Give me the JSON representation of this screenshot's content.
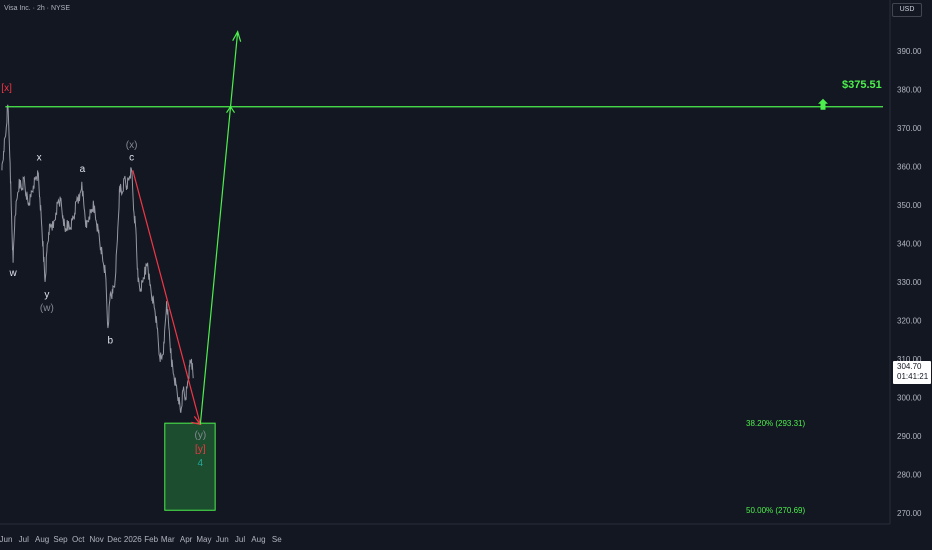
{
  "header": {
    "title": "Visa Inc. · 2h · NYSE"
  },
  "toolbar": {
    "currency_label": "USD"
  },
  "price_badge": {
    "price": "304.70",
    "countdown": "01:41:21"
  },
  "target": {
    "label": "$375.51",
    "value": 375.51
  },
  "fib_levels": [
    {
      "label": "38.20% (293.31)",
      "value": 293.31
    },
    {
      "label": "50.00% (270.69)",
      "value": 270.69
    }
  ],
  "colors": {
    "background": "#131722",
    "price_line": "#9598a1",
    "bearish_line": "#f23645",
    "bullish_line": "#4cf04c",
    "target_zone": "#1b4d2e",
    "wave_white": "#e0e3eb",
    "wave_gray": "#868993",
    "wave_red": "#f23645",
    "wave_green": "#26a69a"
  },
  "icons": {
    "target_arrow": "up-arrow-icon"
  },
  "chart_data": {
    "type": "line",
    "ylim": [
      264,
      397
    ],
    "yticks": [
      270,
      280,
      290,
      300,
      310,
      320,
      330,
      340,
      350,
      360,
      370,
      380,
      390
    ],
    "ytick_labels": [
      "270.00",
      "280.00",
      "290.00",
      "300.00",
      "310.00",
      "320.00",
      "330.00",
      "340.00",
      "350.00",
      "360.00",
      "370.00",
      "380.00",
      "390.00"
    ],
    "x_tick_labels": [
      "Jun",
      "Jul",
      "Aug",
      "Sep",
      "Oct",
      "Nov",
      "Dec",
      "2026",
      "Feb",
      "Mar",
      "Apr",
      "May",
      "Jun",
      "Jul",
      "Aug",
      "Se"
    ],
    "x_tick_dates": [
      "2025-06-01",
      "2025-07-01",
      "2025-08-01",
      "2025-09-01",
      "2025-10-01",
      "2025-11-01",
      "2025-12-01",
      "2026-01-01",
      "2026-02-01",
      "2026-03-01",
      "2026-04-01",
      "2026-05-01",
      "2026-06-01",
      "2026-07-01",
      "2026-08-01",
      "2026-09-01"
    ],
    "series": [
      {
        "x": [
          "2025-05-25",
          "2025-05-28",
          "2025-06-01",
          "2025-06-04",
          "2025-06-08",
          "2025-06-10",
          "2025-06-13",
          "2025-06-16",
          "2025-06-20",
          "2025-06-24",
          "2025-06-28",
          "2025-07-01",
          "2025-07-05",
          "2025-07-09",
          "2025-07-13",
          "2025-07-17",
          "2025-07-21",
          "2025-07-25",
          "2025-07-28",
          "2025-07-31",
          "2025-08-03",
          "2025-08-06",
          "2025-08-09",
          "2025-08-12",
          "2025-08-16",
          "2025-08-20",
          "2025-08-24",
          "2025-08-28",
          "2025-09-01",
          "2025-09-05",
          "2025-09-09",
          "2025-09-13",
          "2025-09-17",
          "2025-09-21",
          "2025-09-25",
          "2025-09-29",
          "2025-10-03",
          "2025-10-07",
          "2025-10-11",
          "2025-10-15",
          "2025-10-19",
          "2025-10-23",
          "2025-10-27",
          "2025-10-31",
          "2025-11-04",
          "2025-11-08",
          "2025-11-12",
          "2025-11-16",
          "2025-11-20",
          "2025-11-24",
          "2025-11-28",
          "2025-12-02",
          "2025-12-06",
          "2025-12-10",
          "2025-12-14",
          "2025-12-18",
          "2025-12-22",
          "2025-12-26",
          "2025-12-30",
          "2026-01-03",
          "2026-01-06",
          "2026-01-10",
          "2026-01-14",
          "2026-01-18",
          "2026-01-22",
          "2026-01-26",
          "2026-01-30",
          "2026-02-03",
          "2026-02-07",
          "2026-02-11",
          "2026-02-15",
          "2026-02-19",
          "2026-02-23",
          "2026-02-27",
          "2026-03-03",
          "2026-03-07",
          "2026-03-11",
          "2026-03-15",
          "2026-03-19",
          "2026-03-23",
          "2026-03-27",
          "2026-03-31",
          "2026-04-03",
          "2026-04-07",
          "2026-04-10",
          "2026-04-13"
        ],
        "values": [
          359,
          364,
          369,
          376,
          361,
          349,
          335,
          347,
          352,
          356,
          354,
          357,
          353,
          350,
          352,
          355,
          357,
          358,
          352,
          345,
          338,
          330,
          338,
          343,
          345,
          344,
          348,
          351,
          351,
          347,
          343,
          345,
          344,
          346,
          348,
          352,
          351,
          356,
          349,
          344,
          347,
          348,
          350,
          346,
          343,
          339,
          335,
          332,
          318,
          327,
          327,
          330,
          341,
          355,
          353,
          357,
          355,
          357,
          359,
          348,
          344,
          330,
          328,
          330,
          333,
          335,
          329,
          326,
          323,
          318,
          311,
          310,
          314,
          325,
          318,
          310,
          306,
          303,
          300,
          296,
          302,
          300,
          303,
          308,
          310,
          305
        ]
      }
    ],
    "projection": {
      "decline": {
        "x": [
          "2026-01-01",
          "2026-04-25"
        ],
        "y": [
          359,
          293
        ]
      },
      "rally": {
        "x": [
          "2026-04-25",
          "2026-06-27"
        ],
        "y": [
          293,
          395
        ]
      }
    },
    "target_line": {
      "y": 375.51,
      "x_start": "2025-05-31"
    },
    "zone": {
      "x": [
        "2026-02-24",
        "2026-05-20"
      ],
      "y": [
        270.69,
        293.31
      ]
    },
    "annotations": [
      {
        "text": "[x]",
        "x": "2025-06-02",
        "y": 379.6,
        "color": "#f23645"
      },
      {
        "text": "w",
        "x": "2025-06-13",
        "y": 331.5,
        "color": "#e0e3eb"
      },
      {
        "text": "x",
        "x": "2025-07-27",
        "y": 361.5,
        "color": "#e0e3eb"
      },
      {
        "text": "y",
        "x": "2025-08-09",
        "y": 326.0,
        "color": "#e0e3eb"
      },
      {
        "text": "(w)",
        "x": "2025-08-09",
        "y": 322.5,
        "color": "#868993"
      },
      {
        "text": "a",
        "x": "2025-10-08",
        "y": 358.5,
        "color": "#e0e3eb"
      },
      {
        "text": "b",
        "x": "2025-11-24",
        "y": 314.0,
        "color": "#e0e3eb"
      },
      {
        "text": "(x)",
        "x": "2025-12-30",
        "y": 364.8,
        "color": "#868993"
      },
      {
        "text": "c",
        "x": "2025-12-30",
        "y": 361.5,
        "color": "#e0e3eb"
      },
      {
        "text": "(y)",
        "x": "2026-04-25",
        "y": 289.5,
        "color": "#868993"
      },
      {
        "text": "[y]",
        "x": "2026-04-25",
        "y": 285.8,
        "color": "#f23645"
      },
      {
        "text": "4",
        "x": "2026-04-25",
        "y": 282.2,
        "color": "#26a69a"
      }
    ]
  }
}
